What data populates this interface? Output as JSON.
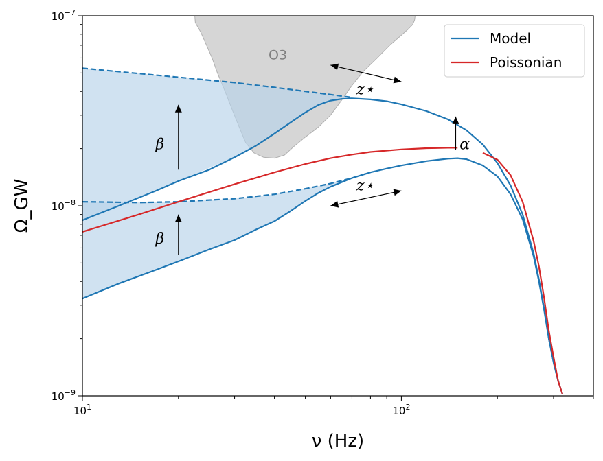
{
  "chart_data": {
    "type": "line",
    "title": "",
    "xlabel": "ν (Hz)",
    "ylabel": "Ω_GW",
    "xscale": "log",
    "yscale": "log",
    "xlim": [
      10,
      400
    ],
    "ylim": [
      1e-09,
      1e-07
    ],
    "x_tick_labels": [
      {
        "value": 10,
        "base": "10",
        "exp": "1"
      },
      {
        "value": 100,
        "base": "10",
        "exp": "2"
      }
    ],
    "y_tick_labels": [
      {
        "value": 1e-09,
        "base": "10",
        "exp": "−9"
      },
      {
        "value": 1e-08,
        "base": "10",
        "exp": "−8"
      },
      {
        "value": 1e-07,
        "base": "10",
        "exp": "−7"
      }
    ],
    "legend": {
      "location": "top-right",
      "entries": [
        {
          "label": "Model",
          "color": "#1f77b4"
        },
        {
          "label": "Poissonian",
          "color": "#d62728"
        }
      ]
    },
    "colors": {
      "model": "#1f77b4",
      "poissonian": "#d62728",
      "band": "#b7d3ea",
      "o3": "#c8c8c8",
      "o3_label": "#808080"
    },
    "series": [
      {
        "name": "Model upper",
        "style": "solid",
        "color": "#1f77b4",
        "x": [
          10,
          13,
          17,
          20,
          25,
          30,
          35,
          40,
          45,
          50,
          55,
          60,
          65,
          70,
          80,
          90,
          100,
          120,
          140,
          160,
          180,
          200,
          220,
          240,
          260,
          270,
          280,
          290,
          300,
          310,
          320
        ],
        "y": [
          8.4e-09,
          1e-08,
          1.2e-08,
          1.35e-08,
          1.55e-08,
          1.8e-08,
          2.07e-08,
          2.4e-08,
          2.75e-08,
          3.1e-08,
          3.4e-08,
          3.58e-08,
          3.65e-08,
          3.68e-08,
          3.63e-08,
          3.55e-08,
          3.42e-08,
          3.15e-08,
          2.85e-08,
          2.5e-08,
          2.1e-08,
          1.68e-08,
          1.28e-08,
          9e-09,
          5.6e-09,
          4.1e-09,
          2.9e-09,
          2e-09,
          1.5e-09,
          1.2e-09,
          1.02e-09
        ]
      },
      {
        "name": "Model upper asymptote",
        "style": "dashed",
        "color": "#1f77b4",
        "x": [
          10,
          20,
          30,
          40,
          50,
          60,
          70
        ],
        "y": [
          5.3e-08,
          4.75e-08,
          4.45e-08,
          4.2e-08,
          4e-08,
          3.85e-08,
          3.72e-08
        ]
      },
      {
        "name": "Model lower",
        "style": "solid",
        "color": "#1f77b4",
        "x": [
          10,
          13,
          17,
          20,
          25,
          30,
          35,
          40,
          45,
          50,
          55,
          60,
          70,
          80,
          90,
          100,
          120,
          140,
          150,
          160,
          180,
          200,
          220,
          240,
          260,
          270,
          280,
          290,
          300,
          310,
          320
        ],
        "y": [
          3.25e-09,
          3.9e-09,
          4.6e-09,
          5.1e-09,
          5.9e-09,
          6.6e-09,
          7.5e-09,
          8.3e-09,
          9.4e-09,
          1.06e-08,
          1.17e-08,
          1.26e-08,
          1.4e-08,
          1.5e-08,
          1.57e-08,
          1.63e-08,
          1.72e-08,
          1.77e-08,
          1.78e-08,
          1.76e-08,
          1.63e-08,
          1.43e-08,
          1.15e-08,
          8.5e-09,
          5.4e-09,
          4e-09,
          2.85e-09,
          2e-09,
          1.5e-09,
          1.2e-09,
          1.02e-09
        ]
      },
      {
        "name": "Model lower asymptote",
        "style": "dashed",
        "color": "#1f77b4",
        "x": [
          10,
          15,
          20,
          30,
          40,
          50,
          60,
          70,
          80
        ],
        "y": [
          1.05e-08,
          1.04e-08,
          1.05e-08,
          1.09e-08,
          1.15e-08,
          1.23e-08,
          1.31e-08,
          1.4e-08,
          1.5e-08
        ]
      },
      {
        "name": "Poissonian",
        "style": "solid",
        "color": "#d62728",
        "x": [
          10,
          15,
          20,
          30,
          40,
          50,
          60,
          70,
          80,
          100,
          120,
          140,
          150
        ],
        "y": [
          7.3e-09,
          9e-09,
          1.05e-08,
          1.3e-08,
          1.5e-08,
          1.66e-08,
          1.78e-08,
          1.86e-08,
          1.92e-08,
          1.98e-08,
          2.01e-08,
          2.02e-08,
          2.02e-08
        ]
      },
      {
        "name": "Poissonian tail",
        "style": "solid",
        "color": "#d62728",
        "x": [
          180,
          200,
          220,
          240,
          260,
          270,
          280,
          290,
          300,
          310,
          320
        ],
        "y": [
          1.9e-08,
          1.75e-08,
          1.45e-08,
          1.05e-08,
          6.5e-09,
          4.8e-09,
          3.3e-09,
          2.2e-09,
          1.6e-09,
          1.2e-09,
          1.02e-09
        ]
      }
    ],
    "bands": [
      {
        "name": "upper band",
        "x": [
          10,
          20,
          30,
          40,
          50,
          60,
          70
        ],
        "y_low": [
          8.4e-09,
          1.35e-08,
          1.8e-08,
          2.4e-08,
          3.1e-08,
          3.58e-08,
          3.68e-08
        ],
        "y_high": [
          5.3e-08,
          4.75e-08,
          4.45e-08,
          4.2e-08,
          4e-08,
          3.85e-08,
          3.72e-08
        ]
      },
      {
        "name": "lower band",
        "x": [
          10,
          20,
          30,
          40,
          50,
          60,
          70,
          80
        ],
        "y_low": [
          3.25e-09,
          5.1e-09,
          6.6e-09,
          8.3e-09,
          1.06e-08,
          1.26e-08,
          1.4e-08,
          1.5e-08
        ],
        "y_high": [
          1.05e-08,
          1.05e-08,
          1.09e-08,
          1.15e-08,
          1.23e-08,
          1.31e-08,
          1.4e-08,
          1.5e-08
        ]
      }
    ],
    "o3_region": {
      "label": "O3",
      "label_at": {
        "x": 41,
        "y": 6.2e-08
      },
      "outline": [
        {
          "x": 22.5,
          "y": 1e-07
        },
        {
          "x": 22.6,
          "y": 9.2e-08
        },
        {
          "x": 23.5,
          "y": 8.2e-08
        },
        {
          "x": 24.5,
          "y": 7e-08
        },
        {
          "x": 25.5,
          "y": 6e-08
        },
        {
          "x": 26.5,
          "y": 5e-08
        },
        {
          "x": 28.0,
          "y": 4e-08
        },
        {
          "x": 29.5,
          "y": 3.2e-08
        },
        {
          "x": 31.0,
          "y": 2.6e-08
        },
        {
          "x": 32.5,
          "y": 2.15e-08
        },
        {
          "x": 34.5,
          "y": 1.9e-08
        },
        {
          "x": 37.0,
          "y": 1.8e-08
        },
        {
          "x": 40.0,
          "y": 1.78e-08
        },
        {
          "x": 43.0,
          "y": 1.85e-08
        },
        {
          "x": 46.0,
          "y": 2.05e-08
        },
        {
          "x": 50.0,
          "y": 2.3e-08
        },
        {
          "x": 55.0,
          "y": 2.6e-08
        },
        {
          "x": 60.0,
          "y": 3e-08
        },
        {
          "x": 65.0,
          "y": 3.6e-08
        },
        {
          "x": 70.0,
          "y": 4.3e-08
        },
        {
          "x": 76.0,
          "y": 5.1e-08
        },
        {
          "x": 84.0,
          "y": 6e-08
        },
        {
          "x": 92.0,
          "y": 7e-08
        },
        {
          "x": 100.0,
          "y": 7.9e-08
        },
        {
          "x": 105.0,
          "y": 8.5e-08
        },
        {
          "x": 108.5,
          "y": 9e-08
        },
        {
          "x": 110.0,
          "y": 9.5e-08
        },
        {
          "x": 110.5,
          "y": 1e-07
        }
      ]
    },
    "annotations": [
      {
        "name": "beta-upper",
        "text": "β",
        "text_at": {
          "x": 17.5,
          "y": 2.1e-08
        },
        "arrow": {
          "type": "single",
          "from": {
            "x": 20,
            "y": 1.55e-08
          },
          "to": {
            "x": 20,
            "y": 3.4e-08
          }
        }
      },
      {
        "name": "beta-lower",
        "text": "β",
        "text_at": {
          "x": 17.5,
          "y": 6.7e-09
        },
        "arrow": {
          "type": "single",
          "from": {
            "x": 20,
            "y": 5.5e-09
          },
          "to": {
            "x": 20,
            "y": 9e-09
          }
        }
      },
      {
        "name": "alpha",
        "text": "α",
        "text_at": {
          "x": 158,
          "y": 2.1e-08
        },
        "arrow": {
          "type": "single",
          "from": {
            "x": 148,
            "y": 1.97e-08
          },
          "to": {
            "x": 148,
            "y": 2.95e-08
          }
        }
      },
      {
        "name": "z-star-upper",
        "text": "z⋆",
        "text_at": {
          "x": 77,
          "y": 4.1e-08
        },
        "arrow": {
          "type": "double",
          "from": {
            "x": 60,
            "y": 5.5e-08
          },
          "to": {
            "x": 100,
            "y": 4.5e-08
          }
        }
      },
      {
        "name": "z-star-lower",
        "text": "z⋆",
        "text_at": {
          "x": 77,
          "y": 1.28e-08
        },
        "arrow": {
          "type": "double",
          "from": {
            "x": 60,
            "y": 1e-08
          },
          "to": {
            "x": 100,
            "y": 1.2e-08
          }
        }
      }
    ]
  }
}
